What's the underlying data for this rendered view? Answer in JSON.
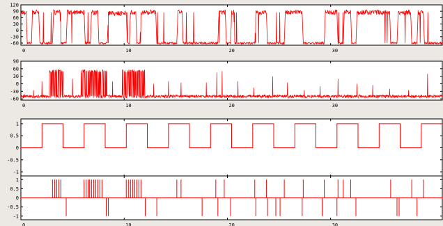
{
  "chart_data": [
    {
      "type": "line",
      "title": "",
      "xlabel": "",
      "ylabel": "",
      "xlim": [
        0,
        40
      ],
      "ylim": [
        -70,
        120
      ],
      "x_ticks": [
        0,
        10,
        20,
        30
      ],
      "y_ticks": [
        120,
        90,
        60,
        30,
        0,
        -30,
        -60
      ],
      "color": "#ff0000",
      "series": [
        {
          "signal": "two-level noisy switching between about -60 and about 85",
          "x": [
            0,
            0.2,
            0.5,
            0.6,
            1.0,
            1.1,
            1.7,
            1.8,
            3.0,
            3.1,
            3.7,
            3.8,
            4.3,
            4.4,
            6.0,
            6.1,
            6.6,
            6.7,
            7.3,
            7.4,
            8.2,
            8.3,
            10.0,
            10.1,
            10.3,
            10.4,
            10.9,
            11.0,
            11.3,
            11.4,
            12.8,
            12.9,
            14.8,
            14.9,
            15.3,
            15.4,
            18.7,
            18.8,
            19.4,
            19.5,
            19.9,
            20.0,
            20.2,
            20.3,
            22.2,
            22.3,
            23.3,
            23.4,
            25.0,
            25.1,
            26.7,
            26.8,
            28.8,
            28.9,
            30.0,
            30.1,
            30.6,
            30.7,
            31.3,
            31.4,
            31.8,
            31.9,
            35.0,
            35.1,
            35.7,
            35.8,
            37.0,
            37.1,
            37.6,
            37.7,
            38.2,
            38.3,
            40.0
          ],
          "y": [
            80,
            85,
            85,
            -60,
            -60,
            85,
            85,
            -60,
            -60,
            85,
            85,
            -60,
            -60,
            85,
            85,
            -60,
            -60,
            85,
            85,
            -60,
            -60,
            80,
            80,
            -60,
            -60,
            85,
            85,
            -60,
            -60,
            85,
            85,
            -60,
            -60,
            85,
            85,
            -60,
            -60,
            85,
            85,
            -60,
            -60,
            85,
            85,
            -60,
            -60,
            85,
            85,
            -60,
            -60,
            85,
            85,
            -60,
            -60,
            85,
            85,
            -60,
            -60,
            85,
            85,
            -60,
            -60,
            85,
            85,
            -60,
            -60,
            85,
            85,
            -60,
            -60,
            85,
            85,
            -60,
            -60
          ]
        }
      ]
    },
    {
      "type": "line",
      "title": "",
      "xlabel": "",
      "ylabel": "",
      "xlim": [
        0,
        40
      ],
      "ylim": [
        -65,
        90
      ],
      "x_ticks": [
        0,
        10,
        20,
        30
      ],
      "y_ticks": [
        90,
        60,
        30,
        0,
        -30,
        -60
      ],
      "color": "#ff0000",
      "series": [
        {
          "signal": "baseline near -50 with dense bursts near 50",
          "baseline": -50,
          "bursts": [
            {
              "x": [
                2.7,
                4.0
              ],
              "level": 50
            },
            {
              "x": [
                5.7,
                8.2
              ],
              "level": 50
            },
            {
              "x": [
                9.6,
                11.8
              ],
              "level": 50
            }
          ],
          "spikes": [
            {
              "x": 0.3,
              "y": -40
            },
            {
              "x": 1.2,
              "y": -25
            },
            {
              "x": 2.0,
              "y": 10
            },
            {
              "x": 4.9,
              "y": 20
            },
            {
              "x": 8.7,
              "y": 10
            },
            {
              "x": 12.6,
              "y": 0
            },
            {
              "x": 14.0,
              "y": 10
            },
            {
              "x": 15.2,
              "y": 5
            },
            {
              "x": 17.6,
              "y": 5
            },
            {
              "x": 18.6,
              "y": 45
            },
            {
              "x": 19.1,
              "y": 50
            },
            {
              "x": 20.6,
              "y": 10
            },
            {
              "x": 22.1,
              "y": -15
            },
            {
              "x": 23.9,
              "y": 30
            },
            {
              "x": 25.3,
              "y": 5
            },
            {
              "x": 26.9,
              "y": -25
            },
            {
              "x": 28.4,
              "y": -10
            },
            {
              "x": 30.1,
              "y": 20
            },
            {
              "x": 31.9,
              "y": 0
            },
            {
              "x": 33.4,
              "y": -5
            },
            {
              "x": 35.0,
              "y": -20
            },
            {
              "x": 36.8,
              "y": -25
            },
            {
              "x": 38.6,
              "y": 40
            }
          ]
        }
      ]
    },
    {
      "type": "line",
      "title": "",
      "xlabel": "",
      "ylabel": "",
      "xlim": [
        0,
        40
      ],
      "ylim": [
        -1.2,
        1.2
      ],
      "x_ticks": [
        0,
        10,
        20,
        30
      ],
      "y_ticks": [
        "1",
        "0.5",
        "0",
        "-0.5",
        "-1"
      ],
      "color": "#ff0000",
      "series": [
        {
          "signal": "square wave between 0 and 1, period 4",
          "x": [
            0,
            2,
            2,
            4,
            4,
            6,
            6,
            8,
            8,
            10,
            10,
            12,
            12,
            14,
            14,
            16,
            16,
            18,
            18,
            20,
            20,
            22,
            22,
            24,
            24,
            26,
            26,
            28,
            28,
            30,
            30,
            32,
            32,
            34,
            34,
            36,
            36,
            38,
            38,
            40
          ],
          "y": [
            0,
            0,
            1,
            1,
            0,
            0,
            1,
            1,
            0,
            0,
            1,
            1,
            0,
            0,
            1,
            1,
            0,
            0,
            1,
            1,
            0,
            0,
            1,
            1,
            0,
            0,
            1,
            1,
            0,
            0,
            1,
            1,
            0,
            0,
            1,
            1,
            0,
            0,
            1,
            1
          ]
        }
      ]
    },
    {
      "type": "line",
      "title": "",
      "xlabel": "",
      "ylabel": "",
      "xlim": [
        0,
        40
      ],
      "ylim": [
        -1.2,
        1.2
      ],
      "x_ticks": [
        0,
        10,
        20,
        30
      ],
      "y_ticks": [
        "1",
        "0.5",
        "0",
        "-0.5",
        "-1"
      ],
      "color": "#ff0000",
      "series": [
        {
          "signal": "impulses to +1 and -1 on a zero baseline",
          "up": [
            3.0,
            3.2,
            3.4,
            3.6,
            3.8,
            6.0,
            6.2,
            6.4,
            6.5,
            6.7,
            6.9,
            7.1,
            7.3,
            7.5,
            7.7,
            10.0,
            10.2,
            10.4,
            10.6,
            10.8,
            11.0,
            11.2,
            11.4,
            14.8,
            15.2,
            18.5,
            19.3,
            22.2,
            23.3,
            25.0,
            26.8,
            28.8,
            30.1,
            30.6,
            31.3,
            35.1,
            37.1,
            38.2
          ],
          "down": [
            4.3,
            8.1,
            8.3,
            11.8,
            12.9,
            17.2,
            18.7,
            19.9,
            22.3,
            23.4,
            24.2,
            24.6,
            26.7,
            28.6,
            30.0,
            31.8,
            35.7,
            35.9,
            37.6
          ]
        }
      ]
    }
  ]
}
